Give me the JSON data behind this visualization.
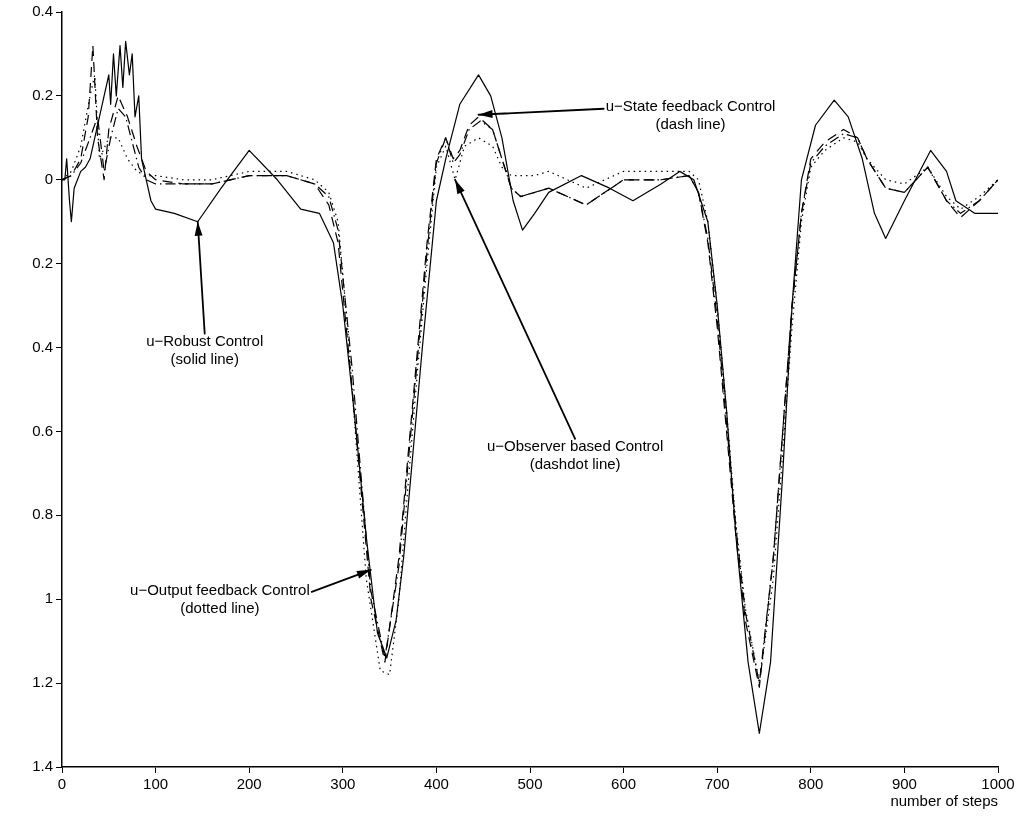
{
  "chart_data": {
    "type": "line",
    "xlabel": "number of steps",
    "xlim": [
      0,
      1000
    ],
    "xticks": [
      0,
      100,
      200,
      300,
      400,
      500,
      600,
      700,
      800,
      900,
      1000
    ],
    "ylim": [
      -1.4,
      0.4
    ],
    "yticks": [
      {
        "value": 0.4,
        "label": "0.4"
      },
      {
        "value": 0.2,
        "label": "0.2"
      },
      {
        "value": 0,
        "label": "0"
      },
      {
        "value": -0.2,
        "label": "0.2"
      },
      {
        "value": -0.4,
        "label": "0.4"
      },
      {
        "value": -0.6,
        "label": "0.6"
      },
      {
        "value": -0.8,
        "label": "0.8"
      },
      {
        "value": -1,
        "label": "1"
      },
      {
        "value": -1.2,
        "label": "1.2"
      },
      {
        "value": -1.4,
        "label": "1.4"
      }
    ],
    "grid": false,
    "legend": false,
    "series": [
      {
        "color": "#000000",
        "line_style": "solid",
        "x": [
          0,
          3,
          5,
          8,
          10,
          13,
          20,
          25,
          30,
          40,
          45,
          50,
          52,
          55,
          58,
          62,
          65,
          68,
          72,
          75,
          78,
          82,
          85,
          90,
          95,
          100,
          120,
          145,
          170,
          200,
          230,
          255,
          275,
          290,
          300,
          312,
          325,
          337,
          347,
          357,
          365,
          375,
          385,
          400,
          410,
          425,
          445,
          458,
          470,
          482,
          492,
          505,
          520,
          555,
          585,
          610,
          640,
          660,
          675,
          690,
          700,
          710,
          720,
          733,
          745,
          757,
          770,
          780,
          790,
          805,
          825,
          840,
          855,
          868,
          880,
          900,
          928,
          945,
          955,
          975,
          1000
        ],
        "values": [
          0,
          0,
          0.05,
          -0.05,
          -0.1,
          -0.02,
          0.02,
          0.03,
          0.05,
          0.15,
          0.2,
          0.25,
          0.18,
          0.3,
          0.2,
          0.32,
          0.22,
          0.33,
          0.25,
          0.3,
          0.15,
          0.2,
          0.05,
          0,
          -0.05,
          -0.07,
          -0.08,
          -0.1,
          -0.02,
          0.07,
          0,
          -0.07,
          -0.08,
          -0.15,
          -0.3,
          -0.55,
          -0.85,
          -1.08,
          -1.14,
          -1.05,
          -0.9,
          -0.65,
          -0.4,
          -0.05,
          0.05,
          0.18,
          0.25,
          0.2,
          0.1,
          -0.05,
          -0.12,
          -0.08,
          -0.03,
          0.01,
          -0.02,
          -0.05,
          -0.01,
          0.02,
          0,
          -0.1,
          -0.3,
          -0.55,
          -0.85,
          -1.15,
          -1.32,
          -1.15,
          -0.7,
          -0.3,
          0,
          0.13,
          0.19,
          0.15,
          0.05,
          -0.08,
          -0.14,
          -0.05,
          0.07,
          0.02,
          -0.05,
          -0.08,
          -0.08
        ]
      },
      {
        "color": "#000000",
        "line_style": "dashed",
        "x": [
          0,
          10,
          20,
          28,
          33,
          38,
          45,
          50,
          60,
          70,
          80,
          90,
          100,
          130,
          160,
          200,
          240,
          270,
          285,
          295,
          310,
          320,
          330,
          345,
          360,
          370,
          380,
          390,
          400,
          410,
          418,
          425,
          435,
          445,
          460,
          470,
          480,
          490,
          505,
          520,
          540,
          560,
          580,
          600,
          640,
          670,
          680,
          690,
          700,
          710,
          720,
          730,
          745,
          760,
          770,
          780,
          790,
          800,
          815,
          835,
          850,
          860,
          880,
          900,
          925,
          945,
          960,
          980,
          1000
        ],
        "values": [
          0,
          0.01,
          0.05,
          0.15,
          0.32,
          0.1,
          0,
          0.12,
          0.2,
          0.15,
          0.08,
          0.02,
          0,
          -0.01,
          -0.01,
          0.01,
          0.01,
          -0.01,
          -0.06,
          -0.15,
          -0.5,
          -0.75,
          -1,
          -1.15,
          -0.9,
          -0.65,
          -0.4,
          -0.15,
          0.05,
          0.1,
          0.05,
          0.07,
          0.13,
          0.15,
          0.12,
          0.05,
          -0.02,
          -0.04,
          -0.03,
          -0.02,
          -0.04,
          -0.06,
          -0.03,
          0,
          0,
          0.01,
          -0.03,
          -0.15,
          -0.35,
          -0.6,
          -0.85,
          -1.05,
          -1.21,
          -0.9,
          -0.6,
          -0.3,
          -0.08,
          0.05,
          0.09,
          0.12,
          0.1,
          0.05,
          -0.02,
          -0.03,
          0.03,
          -0.05,
          -0.09,
          -0.05,
          0
        ]
      },
      {
        "color": "#000000",
        "line_style": "dashdot",
        "x": [
          0,
          10,
          20,
          30,
          38,
          45,
          52,
          60,
          68,
          75,
          82,
          90,
          100,
          130,
          160,
          200,
          240,
          270,
          285,
          295,
          310,
          320,
          330,
          345,
          360,
          370,
          380,
          390,
          400,
          410,
          418,
          425,
          435,
          447,
          460,
          470,
          480,
          490,
          505,
          520,
          540,
          560,
          580,
          600,
          640,
          670,
          680,
          690,
          700,
          710,
          720,
          730,
          745,
          760,
          770,
          780,
          790,
          800,
          815,
          835,
          850,
          860,
          880,
          900,
          925,
          945,
          960,
          980,
          1000
        ],
        "values": [
          0,
          0.01,
          0.04,
          0.1,
          0.15,
          0.02,
          0.1,
          0.17,
          0.15,
          0.09,
          0.03,
          0,
          -0.01,
          -0.01,
          -0.01,
          0.01,
          0.01,
          -0.01,
          -0.04,
          -0.12,
          -0.45,
          -0.72,
          -0.98,
          -1.14,
          -0.92,
          -0.67,
          -0.42,
          -0.17,
          0.04,
          0.1,
          0.04,
          0.06,
          0.12,
          0.14,
          0.12,
          0.05,
          -0.02,
          -0.04,
          -0.03,
          -0.02,
          -0.04,
          -0.06,
          -0.03,
          0,
          0,
          0.01,
          -0.03,
          -0.14,
          -0.33,
          -0.58,
          -0.83,
          -1.03,
          -1.2,
          -0.9,
          -0.6,
          -0.3,
          -0.08,
          0.04,
          0.08,
          0.11,
          0.1,
          0.05,
          -0.02,
          -0.03,
          0.03,
          -0.05,
          -0.08,
          -0.05,
          0
        ]
      },
      {
        "color": "#000000",
        "line_style": "dotted",
        "x": [
          0,
          10,
          20,
          30,
          35,
          40,
          50,
          60,
          70,
          80,
          90,
          100,
          130,
          160,
          200,
          240,
          270,
          285,
          295,
          305,
          315,
          325,
          340,
          350,
          360,
          370,
          380,
          390,
          400,
          410,
          420,
          430,
          445,
          460,
          470,
          480,
          490,
          505,
          520,
          540,
          560,
          580,
          600,
          640,
          670,
          680,
          690,
          700,
          710,
          720,
          730,
          745,
          760,
          770,
          780,
          790,
          800,
          815,
          835,
          850,
          860,
          880,
          900,
          925,
          945,
          960,
          980,
          1000
        ],
        "values": [
          0,
          0.02,
          0.08,
          0.2,
          0.25,
          0.05,
          0.1,
          0.1,
          0.05,
          0.02,
          0.01,
          0.01,
          0,
          0,
          0.02,
          0.02,
          0,
          -0.03,
          -0.1,
          -0.35,
          -0.65,
          -0.95,
          -1.17,
          -1.18,
          -1.0,
          -0.72,
          -0.45,
          -0.2,
          0.03,
          0.08,
          0,
          0.08,
          0.1,
          0.08,
          0.03,
          0.01,
          0.01,
          0.01,
          0.02,
          0.0,
          -0.02,
          0.0,
          0.02,
          0.02,
          0.02,
          0,
          -0.1,
          -0.3,
          -0.55,
          -0.82,
          -1.02,
          -1.2,
          -0.95,
          -0.65,
          -0.35,
          -0.1,
          0.03,
          0.07,
          0.1,
          0.09,
          0.05,
          0,
          -0.01,
          0.03,
          -0.04,
          -0.07,
          -0.04,
          0
        ]
      }
    ],
    "annotations": [
      {
        "text": "u−Robust Control\n(solid line)",
        "x": 145,
        "y": -0.1
      },
      {
        "text": "u−State feedback Control\n(dash line)",
        "x": 445,
        "y": 0.155
      },
      {
        "text": "u−Observer based Control\n(dashdot line)",
        "x": 420,
        "y": 0
      },
      {
        "text": "u−Output feedback Control\n(dotted line)",
        "x": 330,
        "y": -0.93
      }
    ]
  }
}
